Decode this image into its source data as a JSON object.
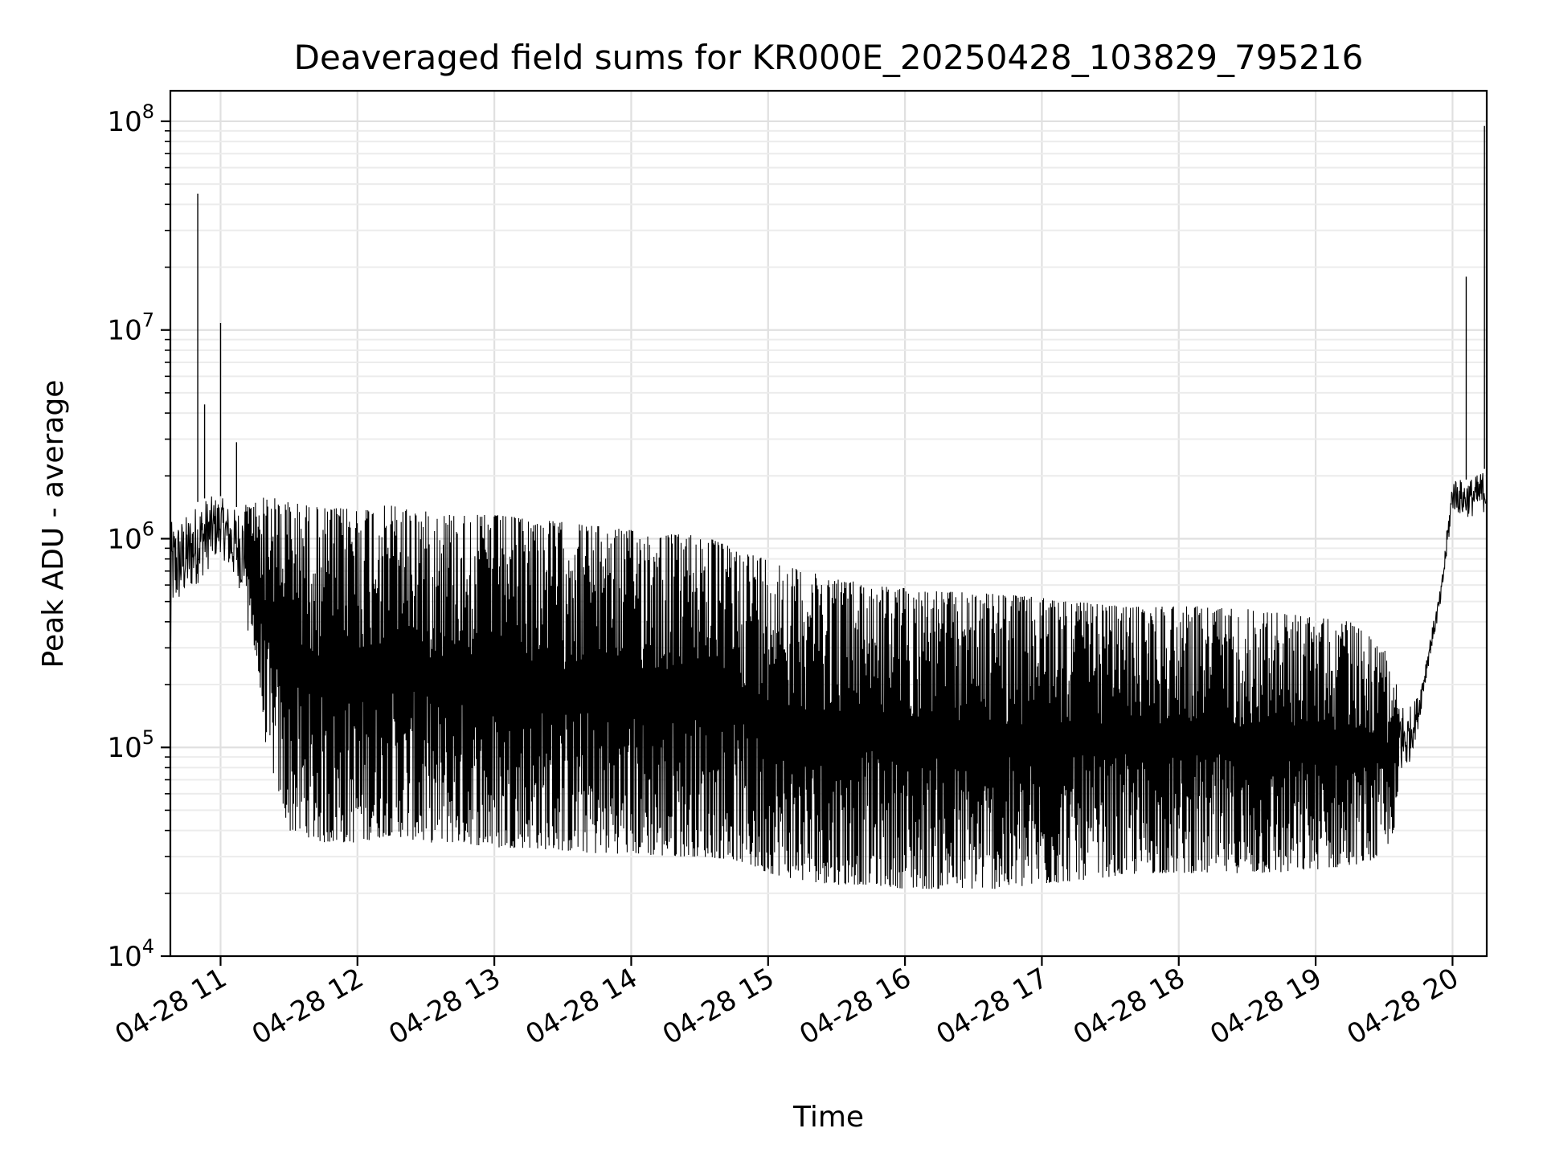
{
  "chart_data": {
    "type": "line",
    "title": "Deaveraged field sums for KR000E_20250428_103829_795216",
    "xlabel": "Time",
    "ylabel": "Peak ADU - average",
    "x_axis_type": "time",
    "xlim": [
      "2025-04-28 10:38",
      "2025-04-28 20:15"
    ],
    "y_scale": "log",
    "ylim": [
      10000,
      140000000
    ],
    "grid": "both (major and minor on y)",
    "x_tick_labels": [
      "04-28 11",
      "04-28 12",
      "04-28 13",
      "04-28 14",
      "04-28 15",
      "04-28 16",
      "04-28 17",
      "04-28 18",
      "04-28 19",
      "04-28 20"
    ],
    "y_ticks": [
      {
        "value": 10000,
        "base": "10",
        "exp": "4"
      },
      {
        "value": 100000,
        "base": "10",
        "exp": "5"
      },
      {
        "value": 1000000,
        "base": "10",
        "exp": "6"
      },
      {
        "value": 10000000,
        "base": "10",
        "exp": "7"
      },
      {
        "value": 100000000,
        "base": "10",
        "exp": "8"
      }
    ],
    "line_color": "#000000",
    "series": [
      {
        "x": [
          "2025-04-28 10:38",
          "2025-04-28 10:45",
          "2025-04-28 10:50",
          "2025-04-28 10:55",
          "2025-04-28 11:00",
          "2025-04-28 11:05",
          "2025-04-28 11:15",
          "2025-04-28 11:20",
          "2025-04-28 11:30",
          "2025-04-28 11:45",
          "2025-04-28 12:00",
          "2025-04-28 12:15",
          "2025-04-28 12:30",
          "2025-04-28 12:45",
          "2025-04-28 13:00",
          "2025-04-28 13:15",
          "2025-04-28 13:30",
          "2025-04-28 13:45",
          "2025-04-28 14:00",
          "2025-04-28 14:15",
          "2025-04-28 14:30",
          "2025-04-28 14:45",
          "2025-04-28 15:00",
          "2025-04-28 15:15",
          "2025-04-28 15:30",
          "2025-04-28 15:45",
          "2025-04-28 16:00",
          "2025-04-28 16:15",
          "2025-04-28 16:30",
          "2025-04-28 16:45",
          "2025-04-28 17:00",
          "2025-04-28 17:15",
          "2025-04-28 17:30",
          "2025-04-28 17:45",
          "2025-04-28 18:00",
          "2025-04-28 18:15",
          "2025-04-28 18:30",
          "2025-04-28 18:45",
          "2025-04-28 19:00",
          "2025-04-28 19:15",
          "2025-04-28 19:30",
          "2025-04-28 19:40",
          "2025-04-28 19:45",
          "2025-04-28 19:50",
          "2025-04-28 19:55",
          "2025-04-28 20:00",
          "2025-04-28 20:05",
          "2025-04-28 20:10",
          "2025-04-28 20:15"
        ],
        "upper": [
          1200000,
          1300000,
          1500000,
          1600000,
          1600000,
          1400000,
          1500000,
          1600000,
          1500000,
          1400000,
          1400000,
          1450000,
          1350000,
          1300000,
          1300000,
          1250000,
          1200000,
          1150000,
          1100000,
          1050000,
          1050000,
          900000,
          800000,
          700000,
          650000,
          600000,
          580000,
          560000,
          550000,
          540000,
          520000,
          500000,
          480000,
          470000,
          480000,
          470000,
          460000,
          440000,
          420000,
          400000,
          300000,
          150000,
          180000,
          330000,
          600000,
          2000000,
          1900000,
          2000000,
          2200000
        ],
        "lower": [
          300000,
          380000,
          450000,
          550000,
          700000,
          500000,
          300000,
          100000,
          40000,
          35000,
          35000,
          38000,
          35000,
          35000,
          33000,
          33000,
          32000,
          31000,
          31000,
          30000,
          30000,
          29000,
          25000,
          23000,
          22000,
          22000,
          21000,
          21000,
          21000,
          21000,
          22000,
          23000,
          24000,
          25000,
          25000,
          25000,
          25000,
          25000,
          26000,
          27000,
          30000,
          60000,
          110000,
          250000,
          450000,
          1200000,
          1100000,
          1100000,
          1150000
        ],
        "spikes": [
          {
            "x": "2025-04-28 10:50",
            "y": 45000000
          },
          {
            "x": "2025-04-28 10:53",
            "y": 4400000
          },
          {
            "x": "2025-04-28 11:00",
            "y": 10800000
          },
          {
            "x": "2025-04-28 11:07",
            "y": 2900000
          },
          {
            "x": "2025-04-28 20:06",
            "y": 18000000
          },
          {
            "x": "2025-04-28 20:14",
            "y": 95000000
          }
        ]
      }
    ]
  }
}
